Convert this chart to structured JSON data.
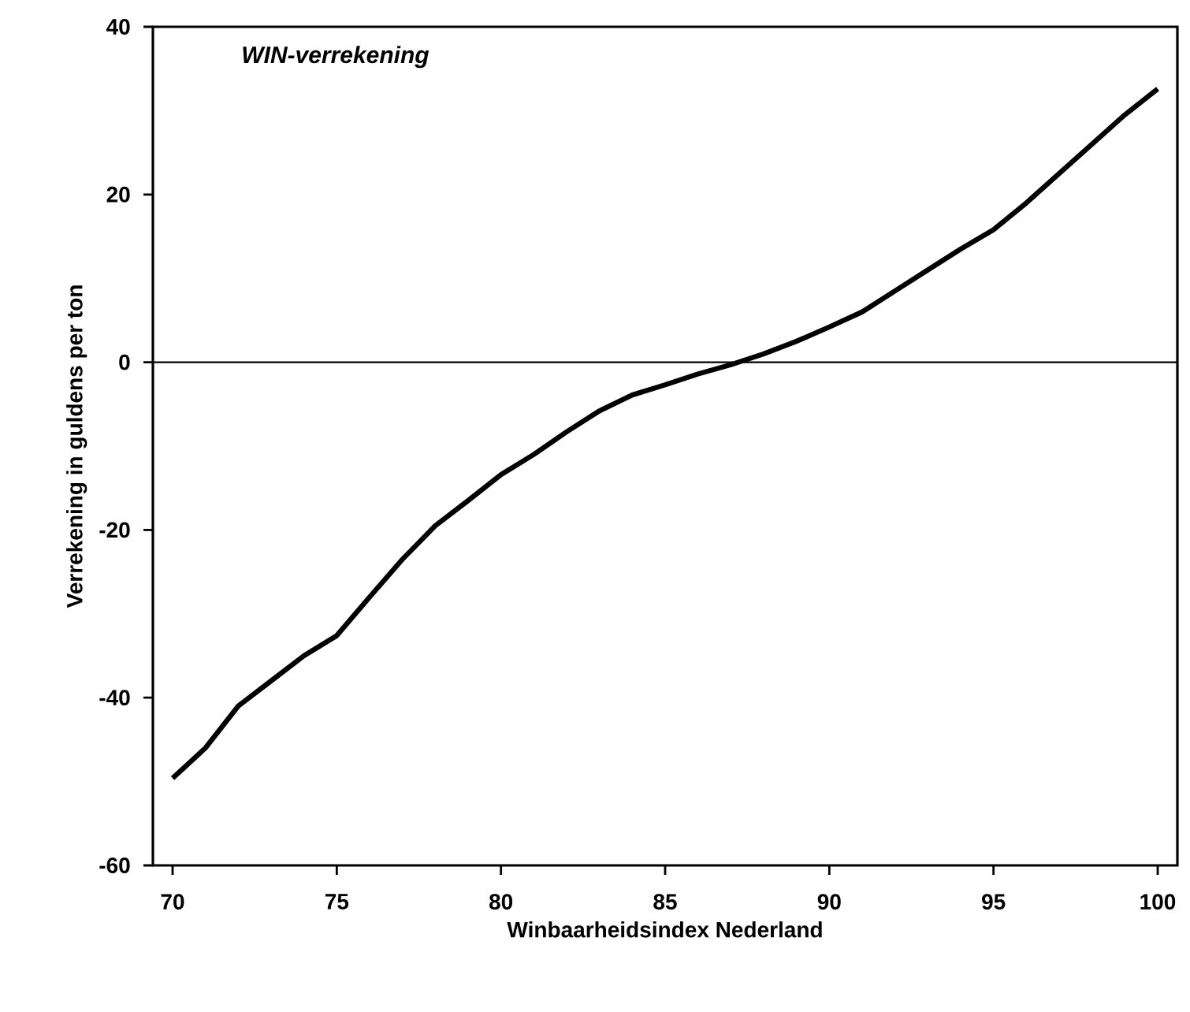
{
  "chart_data": {
    "type": "line",
    "title": "*WIN-verrekening*",
    "xlabel": "Winbaarheidsindex Nederland",
    "ylabel": "Verrekening in guldens per ton",
    "x": [
      70,
      71,
      72,
      73,
      74,
      75,
      76,
      77,
      78,
      79,
      80,
      81,
      82,
      83,
      84,
      85,
      86,
      87,
      88,
      89,
      90,
      91,
      92,
      93,
      94,
      95,
      96,
      97,
      98,
      99,
      100
    ],
    "series": [
      {
        "color": "#000000",
        "values": [
          -49.6,
          -46,
          -41,
          -38,
          -35,
          -32.6,
          -28,
          -23.5,
          -19.5,
          -16.5,
          -13.4,
          -11,
          -8.3,
          -5.8,
          -3.9,
          -2.7,
          -1.4,
          -0.3,
          1,
          2.5,
          4.2,
          6,
          8.5,
          11,
          13.5,
          15.8,
          19,
          22.5,
          26,
          29.5,
          32.6
        ]
      }
    ],
    "xlim": [
      69.4,
      100.6
    ],
    "ylim": [
      -60,
      40
    ],
    "xticks": [
      70,
      75,
      80,
      85,
      90,
      95,
      100
    ],
    "yticks": [
      -60,
      -40,
      -20,
      0,
      20,
      40
    ],
    "ref_lines": [
      {
        "axis": "y",
        "value": 0,
        "color": "#000000"
      }
    ],
    "grid": false,
    "marker": "none",
    "line_style": "solid"
  }
}
